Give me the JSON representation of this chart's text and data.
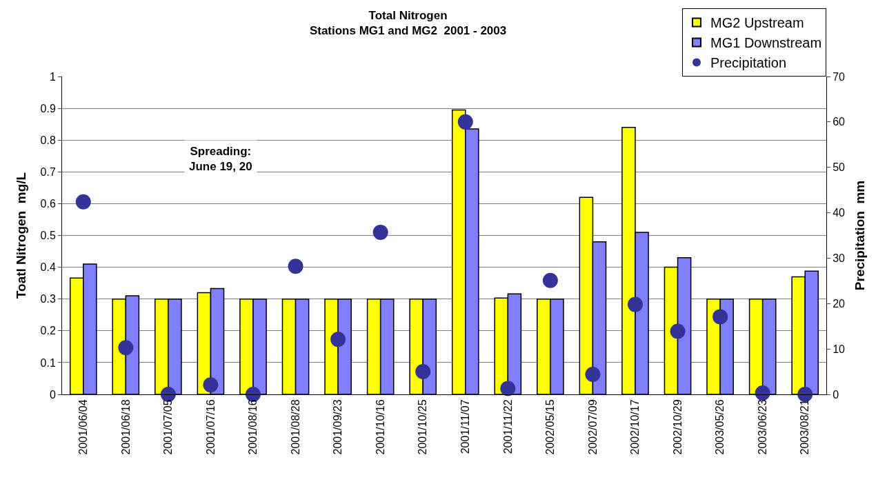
{
  "chart_data": {
    "type": "bar",
    "title": "Total Nitrogen\nStations MG1 and MG2  2001 - 2003",
    "ylabel": "Toatl Nitrogen  mg/L",
    "y2label": "Precipitation  mm",
    "categories": [
      "2001/06/04",
      "2001/06/18",
      "2001/07/05",
      "2001/07/16",
      "2001/08/16",
      "2001/08/28",
      "2001/09/23",
      "2001/10/16",
      "2001/10/25",
      "2001/11/07",
      "2001/11/22",
      "2002/05/15",
      "2002/07/09",
      "2002/10/17",
      "2002/10/29",
      "2003/05/26",
      "2003/06/23",
      "2003/08/21"
    ],
    "series": [
      {
        "name": "MG2 Upstream",
        "color": "#ffff00",
        "values": [
          0.366,
          0.3,
          0.3,
          0.32,
          0.3,
          0.3,
          0.3,
          0.3,
          0.3,
          0.895,
          0.303,
          0.3,
          0.62,
          0.84,
          0.4,
          0.3,
          0.3,
          0.37
        ]
      },
      {
        "name": "MG1 Downstream",
        "color": "#8080ff",
        "values": [
          0.41,
          0.31,
          0.3,
          0.333,
          0.3,
          0.3,
          0.3,
          0.3,
          0.3,
          0.835,
          0.316,
          0.3,
          0.48,
          0.51,
          0.43,
          0.3,
          0.3,
          0.388
        ]
      },
      {
        "name": "Precipitation",
        "type": "scatter",
        "axis": "y2",
        "marker": "circle",
        "color": "#333399",
        "values": [
          42.4,
          10.3,
          0,
          2.1,
          0,
          28.2,
          12.1,
          35.7,
          5.0,
          60,
          1.3,
          25.1,
          4.4,
          19.8,
          13.9,
          17.1,
          0.3,
          0
        ]
      }
    ],
    "ylim": [
      0,
      1
    ],
    "yticks": [
      0,
      0.1,
      0.2,
      0.3,
      0.4,
      0.5,
      0.6,
      0.7,
      0.8,
      0.9,
      1
    ],
    "y2lim": [
      0,
      70
    ],
    "y2ticks": [
      0,
      10,
      20,
      30,
      40,
      50,
      60,
      70
    ],
    "grid": "y",
    "legend": "top right",
    "annotations": [
      "Spreading:\nJune 19, 20"
    ]
  }
}
